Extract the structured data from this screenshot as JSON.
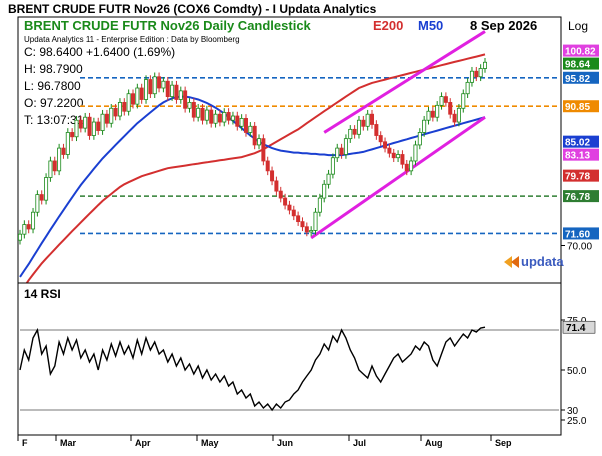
{
  "window": {
    "title": "BRENT CRUDE FUTR  Nov26 (COX6 Comdty) - I  Updata Analytics",
    "logo_text": "updata"
  },
  "chart_data": [
    {
      "type": "candlestick",
      "title": "BRENT CRUDE FUTR  Nov26 Daily Candlestick",
      "overlay_labels": {
        "e200": "E200",
        "m50": "M50",
        "date": "8 Sep 2026"
      },
      "axis_header": "Log",
      "info": {
        "line1": "Updata Analytics 11 - Enterprise Edition : Data by Bloomberg",
        "close": "C: 98.6400  +1.6400 (1.69%)",
        "high": "H: 98.7900",
        "low": "L: 96.7800",
        "open": "O: 97.2200",
        "time": "T: 13:07:31"
      },
      "y_scale": "log",
      "ylim": [
        65.5,
        104
      ],
      "yticks": [
        "70.00"
      ],
      "x_months": [
        "F",
        "Mar",
        "Apr",
        "May",
        "Jun",
        "Jul",
        "Aug",
        "Sep"
      ],
      "close_series": [
        71.5,
        72.8,
        72.2,
        74.5,
        77.0,
        76.2,
        79.5,
        82.0,
        80.5,
        84.0,
        83.0,
        86.5,
        85.8,
        88.5,
        87.2,
        89.0,
        86.0,
        88.2,
        86.8,
        89.5,
        88.0,
        90.5,
        89.2,
        91.5,
        90.0,
        93.0,
        91.2,
        94.0,
        92.0,
        95.5,
        93.0,
        96.0,
        94.0,
        95.2,
        92.5,
        94.5,
        92.0,
        93.5,
        90.5,
        91.5,
        89.0,
        90.5,
        88.5,
        90.2,
        88.0,
        89.5,
        88.2,
        89.8,
        88.5,
        89.2,
        87.5,
        88.8,
        86.5,
        87.5,
        84.5,
        85.5,
        82.0,
        80.5,
        79.0,
        77.5,
        76.5,
        75.5,
        74.8,
        74.0,
        73.2,
        72.5,
        71.8,
        72.0,
        74.5,
        76.5,
        78.5,
        80.0,
        82.5,
        84.0,
        83.0,
        85.5,
        87.0,
        86.2,
        88.5,
        87.5,
        89.5,
        87.8,
        86.0,
        85.0,
        84.0,
        83.2,
        82.5,
        83.0,
        81.5,
        80.5,
        82.0,
        84.5,
        86.5,
        88.5,
        90.0,
        89.0,
        91.0,
        92.5,
        91.5,
        89.5,
        88.2,
        90.5,
        93.0,
        95.0,
        97.0,
        96.0,
        97.5,
        98.64
      ],
      "e200_series": [
        64.0,
        64.8,
        65.6,
        66.3,
        67.0,
        67.7,
        68.3,
        68.9,
        69.5,
        70.1,
        70.7,
        71.3,
        71.9,
        72.5,
        73.1,
        73.7,
        74.3,
        74.9,
        75.5,
        76.1,
        76.6,
        77.1,
        77.6,
        78.1,
        78.5,
        78.8,
        79.1,
        79.4,
        79.7,
        79.9,
        80.1,
        80.3,
        80.5,
        80.7,
        80.9,
        81.0,
        81.1,
        81.2,
        81.3,
        81.4,
        81.5,
        81.6,
        81.7,
        81.8,
        81.9,
        82.0,
        82.1,
        82.2,
        82.3,
        82.4,
        82.5,
        82.6,
        82.8,
        83.0,
        83.2,
        83.5,
        83.8,
        84.2,
        84.6,
        85.0,
        85.4,
        85.8,
        86.2,
        86.6,
        87.0,
        87.5,
        88.0,
        88.5,
        89.0,
        89.5,
        90.0,
        90.5,
        91.0,
        91.5,
        92.0,
        92.5,
        93.0,
        93.5,
        94.0,
        94.3,
        94.6,
        94.9,
        95.1,
        95.3,
        95.5,
        95.7,
        95.9,
        96.1,
        96.3,
        96.5,
        96.7,
        96.9,
        97.1,
        97.3,
        97.5,
        97.7,
        97.9,
        98.1,
        98.3,
        98.5,
        98.7,
        98.9,
        99.1,
        99.3,
        99.5,
        99.7,
        99.9,
        100.1
      ],
      "m50_series": [
        66.0,
        66.8,
        67.6,
        68.5,
        69.4,
        70.3,
        71.2,
        72.1,
        73.0,
        73.9,
        74.8,
        75.7,
        76.6,
        77.5,
        78.4,
        79.2,
        80.0,
        80.8,
        81.6,
        82.4,
        83.1,
        83.8,
        84.5,
        85.2,
        85.9,
        86.6,
        87.3,
        88.0,
        88.6,
        89.2,
        89.8,
        90.4,
        91.0,
        91.5,
        91.9,
        92.2,
        92.4,
        92.5,
        92.5,
        92.4,
        92.2,
        92.0,
        91.7,
        91.4,
        91.0,
        90.6,
        90.1,
        89.6,
        89.0,
        88.4,
        87.8,
        87.2,
        86.6,
        86.0,
        85.5,
        85.0,
        84.6,
        84.3,
        84.0,
        83.8,
        83.6,
        83.5,
        83.4,
        83.3,
        83.3,
        83.2,
        83.2,
        83.1,
        83.1,
        83.0,
        83.0,
        82.9,
        82.9,
        82.9,
        82.9,
        83.0,
        83.1,
        83.2,
        83.3,
        83.4,
        83.6,
        83.8,
        84.0,
        84.2,
        84.4,
        84.6,
        84.8,
        85.0,
        85.2,
        85.4,
        85.6,
        85.8,
        86.0,
        86.2,
        86.4,
        86.6,
        86.8,
        87.0,
        87.2,
        87.4,
        87.6,
        87.8,
        88.0,
        88.2,
        88.4,
        88.6,
        88.8,
        89.0
      ],
      "horizontal_levels": [
        {
          "value": 95.82,
          "label": "95.82",
          "color": "#1565c0"
        },
        {
          "value": 90.85,
          "label": "90.85",
          "color": "#ef8a00"
        },
        {
          "value": 76.78,
          "label": "76.78",
          "color": "#2e7d32"
        },
        {
          "value": 71.6,
          "label": "71.60",
          "color": "#1565c0"
        }
      ],
      "right_labels": [
        {
          "value": 100.82,
          "label": "100.82",
          "bg": "#e040e0",
          "fg": "#ffffff"
        },
        {
          "value": 98.64,
          "label": "98.64",
          "bg": "#1a8a1a",
          "fg": "#ffffff"
        },
        {
          "value": 95.82,
          "label": "95.82",
          "bg": "#1565c0",
          "fg": "#ffffff"
        },
        {
          "value": 90.85,
          "label": "90.85",
          "bg": "#ef8a00",
          "fg": "#ffffff"
        },
        {
          "value": 85.02,
          "label": "85.02",
          "bg": "#1a3fd1",
          "fg": "#ffffff"
        },
        {
          "value": 83.13,
          "label": "83.13",
          "bg": "#e040e0",
          "fg": "#ffffff"
        },
        {
          "value": 79.78,
          "label": "79.78",
          "bg": "#d32f2f",
          "fg": "#ffffff"
        },
        {
          "value": 76.78,
          "label": "76.78",
          "bg": "#2e7d32",
          "fg": "#ffffff"
        },
        {
          "value": 71.6,
          "label": "71.60",
          "bg": "#1565c0",
          "fg": "#ffffff"
        }
      ],
      "channel_lines": [
        {
          "x": [
            70,
            107
          ],
          "y": [
            86.5,
            104.5
          ]
        },
        {
          "x": [
            67,
            107
          ],
          "y": [
            71.0,
            89.0
          ]
        }
      ]
    },
    {
      "type": "line",
      "title": "14 RSI",
      "ylim": [
        20,
        82
      ],
      "yticks": [
        "75.0",
        "50.0",
        "30",
        "25.0"
      ],
      "ref_levels": [
        70,
        30
      ],
      "last_label": "71.4",
      "values": [
        50,
        60,
        55,
        66,
        70,
        58,
        62,
        48,
        52,
        64,
        58,
        66,
        60,
        65,
        56,
        60,
        54,
        58,
        50,
        60,
        55,
        63,
        57,
        64,
        58,
        62,
        56,
        65,
        58,
        66,
        60,
        64,
        58,
        60,
        54,
        58,
        52,
        56,
        50,
        53,
        48,
        52,
        46,
        50,
        45,
        48,
        44,
        47,
        42,
        44,
        38,
        40,
        36,
        38,
        32,
        34,
        31,
        33,
        30,
        33,
        31,
        34,
        35,
        38,
        40,
        44,
        47,
        50,
        55,
        58,
        63,
        60,
        67,
        64,
        70,
        66,
        60,
        56,
        50,
        48,
        46,
        52,
        47,
        44,
        48,
        52,
        56,
        58,
        54,
        56,
        58,
        62,
        60,
        64,
        62,
        55,
        52,
        58,
        64,
        66,
        62,
        65,
        68,
        66,
        70,
        69,
        71,
        71.4
      ]
    }
  ]
}
